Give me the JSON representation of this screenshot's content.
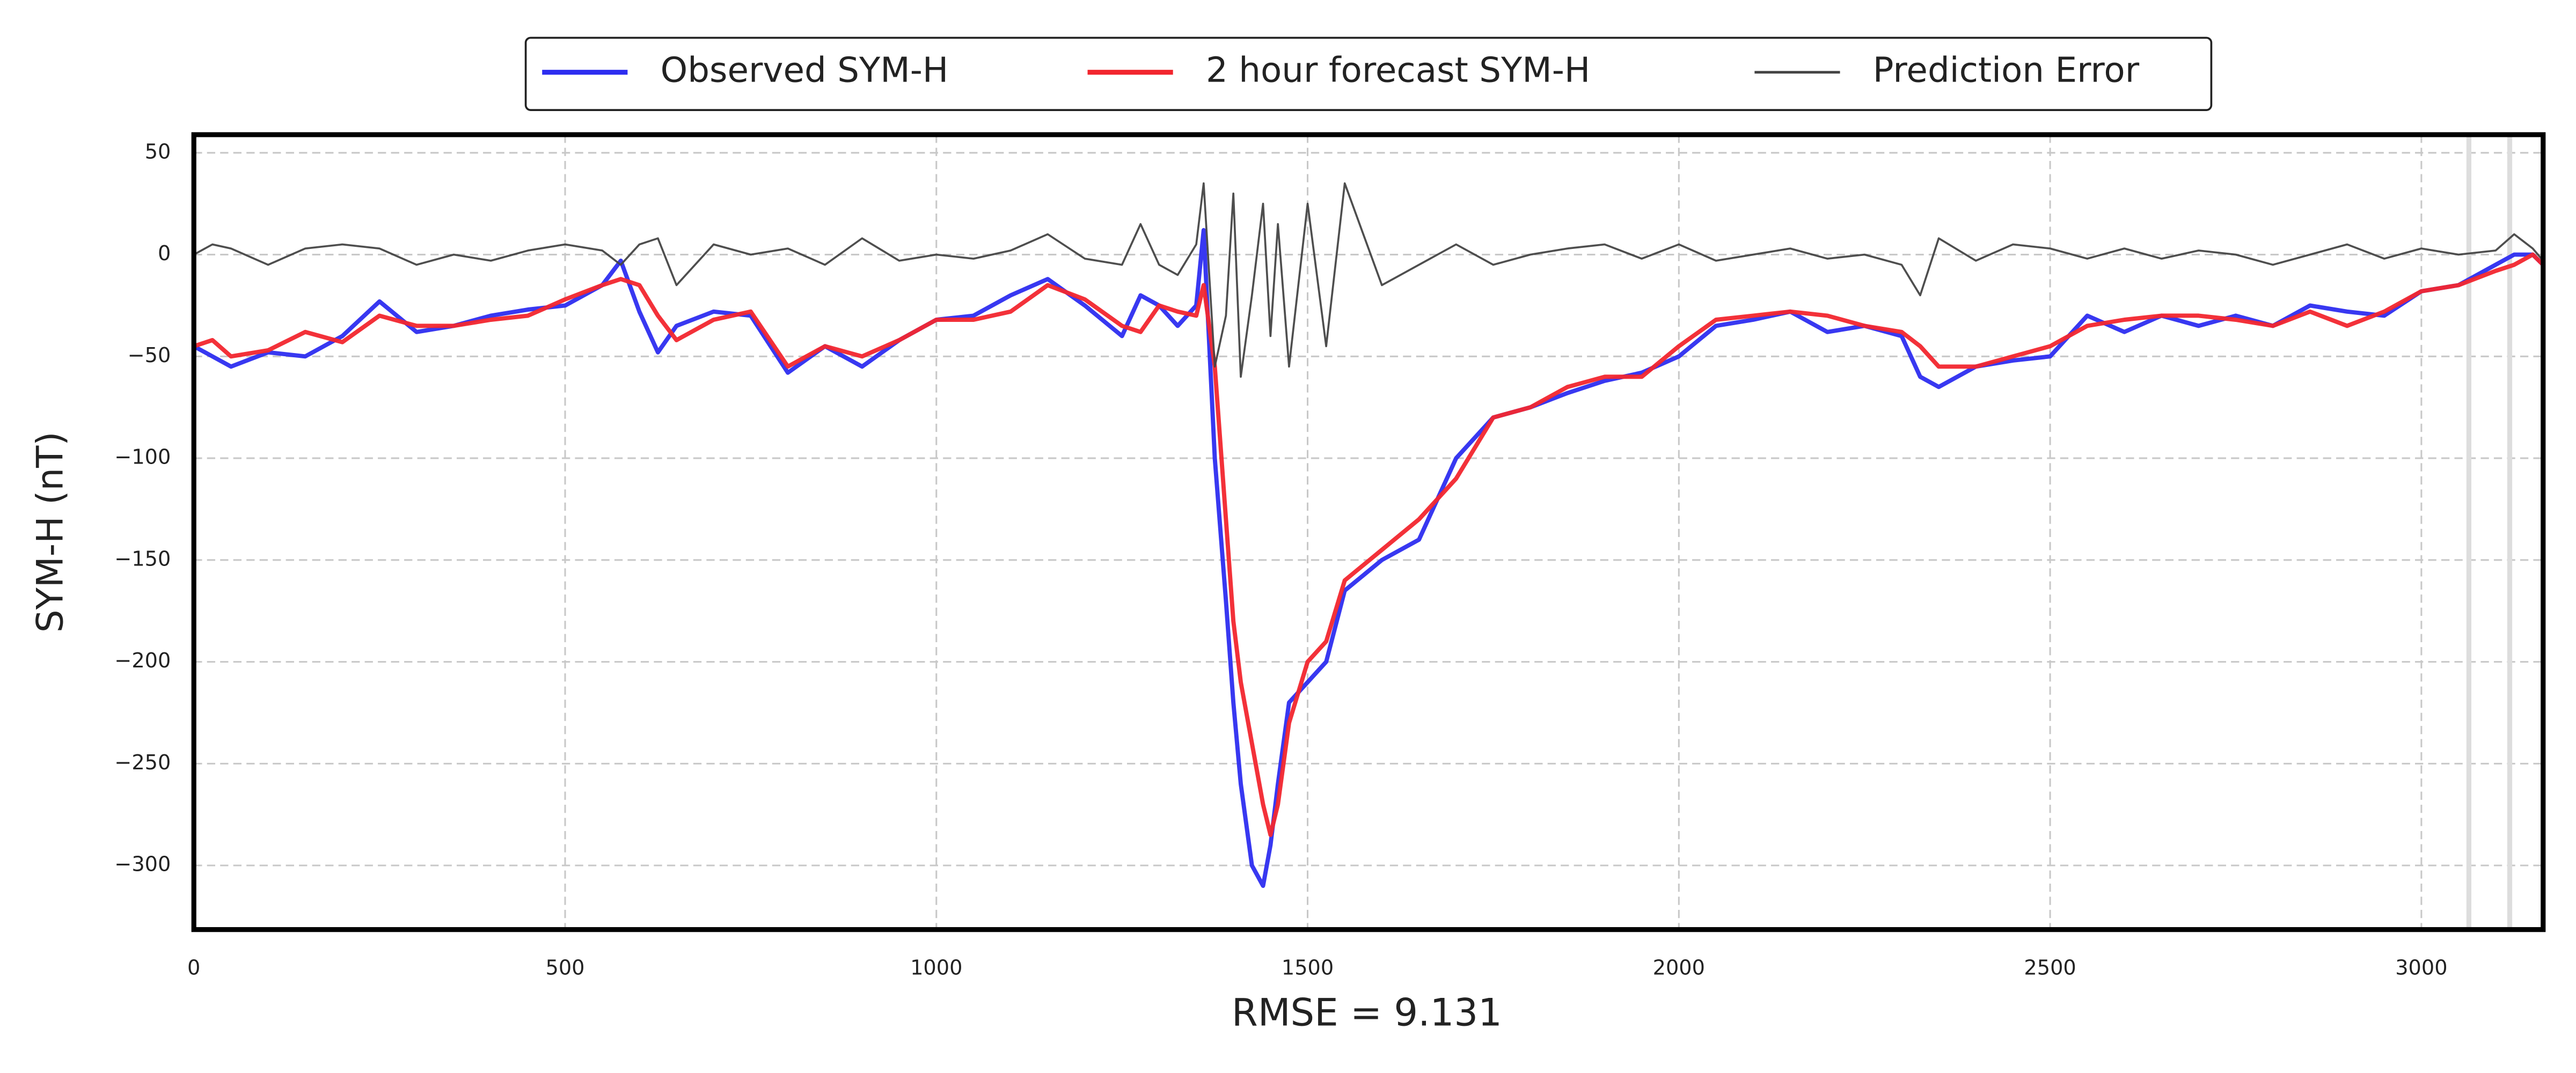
{
  "chart_data": {
    "type": "line",
    "xlabel": "RMSE = 9.131",
    "ylabel": "SYM-H (nT)",
    "x": [
      0,
      25,
      50,
      100,
      150,
      200,
      250,
      300,
      350,
      400,
      450,
      500,
      550,
      575,
      600,
      625,
      650,
      700,
      750,
      800,
      850,
      900,
      950,
      1000,
      1050,
      1100,
      1150,
      1200,
      1250,
      1275,
      1300,
      1325,
      1350,
      1360,
      1375,
      1390,
      1400,
      1410,
      1425,
      1440,
      1450,
      1460,
      1475,
      1500,
      1525,
      1550,
      1600,
      1650,
      1700,
      1750,
      1800,
      1850,
      1900,
      1950,
      2000,
      2050,
      2100,
      2150,
      2200,
      2250,
      2300,
      2325,
      2350,
      2400,
      2450,
      2500,
      2550,
      2600,
      2650,
      2700,
      2750,
      2800,
      2850,
      2900,
      2950,
      3000,
      3050,
      3100,
      3125,
      3150,
      3164
    ],
    "series": [
      {
        "name": "Observed SYM-H",
        "color": "#2d2df0",
        "width": 2.6,
        "values": [
          -45,
          -50,
          -55,
          -48,
          -50,
          -40,
          -23,
          -38,
          -35,
          -30,
          -27,
          -25,
          -15,
          -3,
          -28,
          -48,
          -35,
          -28,
          -30,
          -58,
          -45,
          -55,
          -42,
          -32,
          -30,
          -20,
          -12,
          -25,
          -40,
          -20,
          -25,
          -35,
          -25,
          12,
          -100,
          -170,
          -220,
          -260,
          -300,
          -310,
          -290,
          -260,
          -220,
          -210,
          -200,
          -165,
          -150,
          -140,
          -100,
          -80,
          -75,
          -68,
          -62,
          -58,
          -50,
          -35,
          -32,
          -28,
          -38,
          -35,
          -40,
          -60,
          -65,
          -55,
          -52,
          -50,
          -30,
          -38,
          -30,
          -35,
          -30,
          -35,
          -25,
          -28,
          -30,
          -18,
          -15,
          -5,
          0,
          0,
          -5
        ]
      },
      {
        "name": "2 hour forecast SYM-H",
        "color": "#f2262e",
        "width": 2.6,
        "values": [
          -45,
          -42,
          -50,
          -47,
          -38,
          -43,
          -30,
          -35,
          -35,
          -32,
          -30,
          -22,
          -15,
          -12,
          -15,
          -30,
          -42,
          -32,
          -28,
          -55,
          -45,
          -50,
          -42,
          -32,
          -32,
          -28,
          -15,
          -22,
          -35,
          -38,
          -25,
          -28,
          -30,
          -15,
          -55,
          -130,
          -180,
          -210,
          -240,
          -270,
          -285,
          -270,
          -230,
          -200,
          -190,
          -160,
          -145,
          -130,
          -110,
          -80,
          -75,
          -65,
          -60,
          -60,
          -45,
          -32,
          -30,
          -28,
          -30,
          -35,
          -38,
          -45,
          -55,
          -55,
          -50,
          -45,
          -35,
          -32,
          -30,
          -30,
          -32,
          -35,
          -28,
          -35,
          -28,
          -18,
          -15,
          -8,
          -5,
          0,
          -5
        ]
      },
      {
        "name": "Prediction Error",
        "color": "#444444",
        "width": 1.2,
        "values": [
          0,
          5,
          3,
          -5,
          3,
          5,
          3,
          -5,
          0,
          -3,
          2,
          5,
          2,
          -5,
          5,
          8,
          -15,
          5,
          0,
          3,
          -5,
          8,
          -3,
          0,
          -2,
          2,
          10,
          -2,
          -5,
          15,
          -5,
          -10,
          5,
          35,
          -55,
          -30,
          30,
          -60,
          -20,
          25,
          -40,
          15,
          -55,
          25,
          -45,
          35,
          -15,
          -5,
          5,
          -5,
          0,
          3,
          5,
          -2,
          5,
          -3,
          0,
          3,
          -2,
          0,
          -5,
          -20,
          8,
          -3,
          5,
          3,
          -2,
          3,
          -2,
          2,
          0,
          -5,
          0,
          5,
          -2,
          3,
          0,
          2,
          10,
          3,
          -3
        ]
      }
    ],
    "xlim": [
      0,
      3164
    ],
    "ylim": [
      -331.5,
      58.9
    ],
    "xticks": [
      0,
      500,
      1000,
      1500,
      2000,
      2500,
      3000
    ],
    "yticks": [
      {
        "value": -300,
        "label": "−300"
      },
      {
        "value": -250,
        "label": "−250"
      },
      {
        "value": -200,
        "label": "−200"
      },
      {
        "value": -150,
        "label": "−150"
      },
      {
        "value": -100,
        "label": "−100"
      },
      {
        "value": -50,
        "label": "−50"
      },
      0,
      50
    ],
    "vlines": [
      3064,
      3119
    ],
    "grid": true,
    "legend": "top"
  }
}
